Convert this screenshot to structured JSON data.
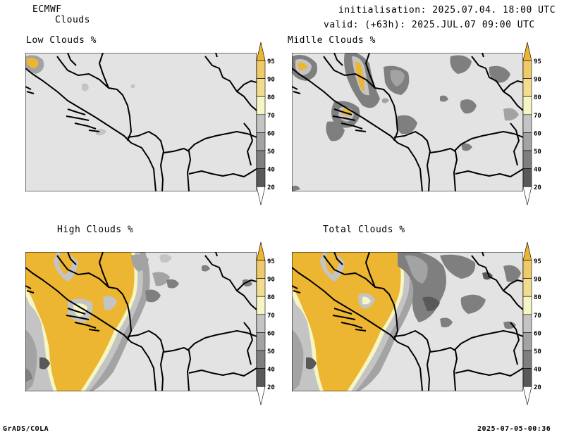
{
  "header": {
    "model": "ECMWF",
    "variable": "Clouds",
    "init_line": "initialisation: 2025.07.04. 18:00 UTC",
    "valid_line": "valid: (+63h): 2025.JUL.07 09:00 UTC"
  },
  "panels": [
    {
      "id": "low",
      "title": "Low Clouds %"
    },
    {
      "id": "mid",
      "title": "Midlle Clouds %"
    },
    {
      "id": "high",
      "title": "High Clouds %"
    },
    {
      "id": "total",
      "title": "Total Clouds %"
    }
  ],
  "colorbar": {
    "labels": [
      "95",
      "90",
      "80",
      "70",
      "60",
      "50",
      "40",
      "20"
    ],
    "colors": {
      "lt20": "#ffffff",
      "c20": "#595959",
      "c40": "#7f7f7f",
      "c50": "#a3a3a3",
      "c60": "#c4c4c4",
      "c70": "#f6f6c4",
      "c80": "#f2dc8e",
      "c90": "#eeca68",
      "c95": "#ecb532"
    }
  },
  "footer": {
    "left": "GrADS/COLA",
    "right": "2025-07-05-00:36"
  }
}
